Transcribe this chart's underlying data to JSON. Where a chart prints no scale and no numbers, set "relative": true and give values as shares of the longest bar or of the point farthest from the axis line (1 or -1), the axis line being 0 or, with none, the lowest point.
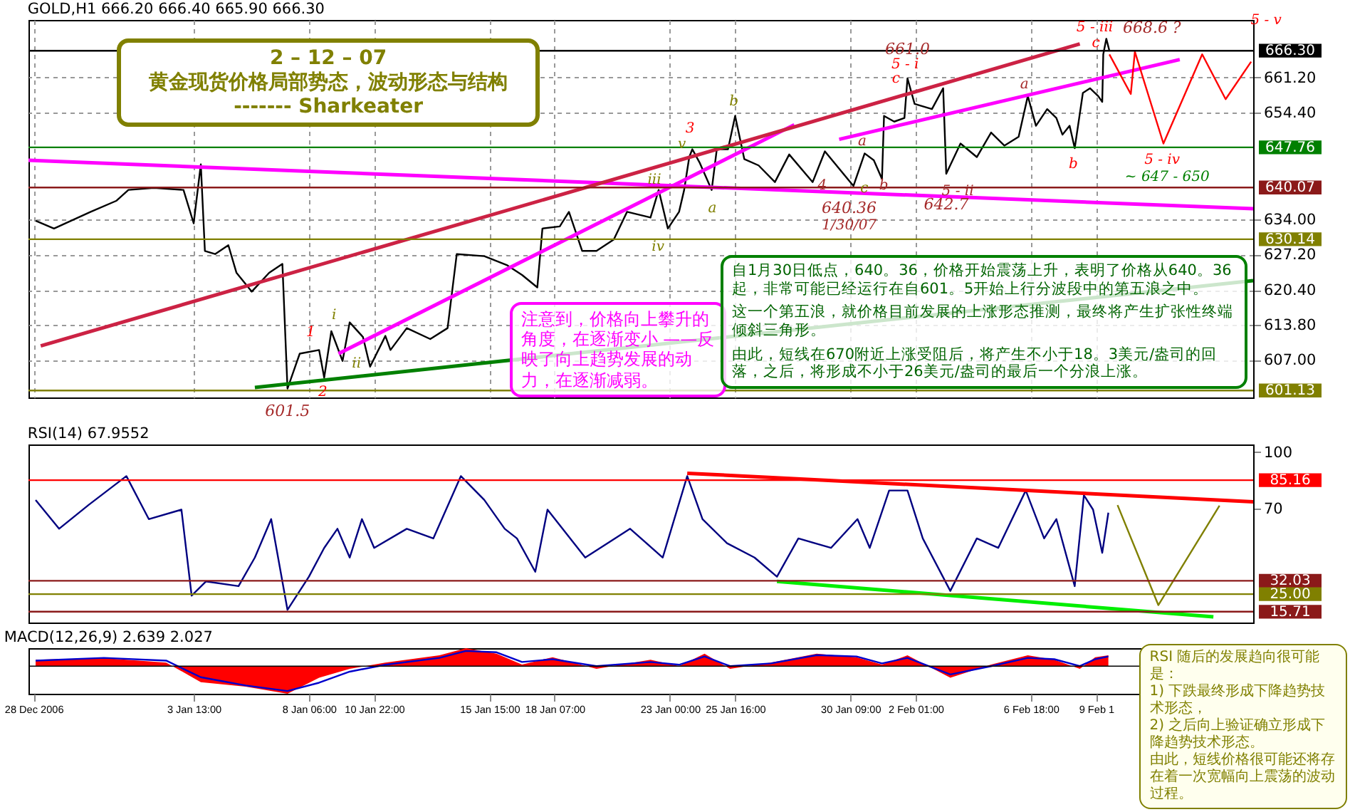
{
  "chart_data": [
    {
      "type": "line",
      "title": "GOLD,H1  666.20 666.40 665.90 666.30",
      "xlim": [
        "2006-12-27T19:00",
        "2007-02-15T20:00"
      ],
      "xticks": [
        {
          "value": "2006-12-28T00:00",
          "label": null
        },
        {
          "value": "2007-01-03T13:00",
          "label": null
        },
        {
          "value": "2007-01-08T06:00",
          "label": null
        },
        {
          "value": "2007-01-10T22:00",
          "label": null
        },
        {
          "value": "2007-01-15T15:00",
          "label": null
        },
        {
          "value": "2007-01-18T07:00",
          "label": null
        },
        {
          "value": "2007-01-23T00:00",
          "label": null
        },
        {
          "value": "2007-01-25T16:00",
          "label": null
        },
        {
          "value": "2007-01-30T09:00",
          "label": null
        },
        {
          "value": "2007-02-02T01:00",
          "label": null
        },
        {
          "value": "2007-02-06T18:00",
          "label": null
        },
        {
          "value": "2007-02-09T10:00",
          "label": null
        }
      ],
      "ylim": [
        599.8,
        672.2
      ],
      "yticks": [
        {
          "value": 607,
          "label": "607.00"
        },
        {
          "value": 613.8,
          "label": "613.80"
        },
        {
          "value": 620.4,
          "label": "620.40"
        },
        {
          "value": 627.2,
          "label": "627.20"
        },
        {
          "value": 634,
          "label": "634.00"
        },
        {
          "value": 654.4,
          "label": "654.40"
        },
        {
          "value": 661.2,
          "label": "661.20"
        }
      ],
      "tick_labels": "y",
      "grid": true,
      "series": [
        {
          "color": "#000000",
          "x": [
            "2006-12-28T02:00",
            "2006-12-28T20:00",
            "2006-12-30T08:00",
            "2006-12-31T09:00",
            "2006-12-31T21:00",
            "2007-01-01T22:00",
            "2007-01-03T03:00",
            "2007-01-03T13:00",
            "2007-01-03T20:00",
            "2007-01-04T00:00",
            "2007-01-04T10:00",
            "2007-01-04T23:00",
            "2007-01-05T07:00",
            "2007-01-05T22:00",
            "2007-01-06T15:00",
            "2007-01-07T04:00",
            "2007-01-07T09:00",
            "2007-01-07T21:00",
            "2007-01-08T16:00",
            "2007-01-08T21:00",
            "2007-01-09T04:00",
            "2007-01-09T15:00",
            "2007-01-09T22:00",
            "2007-01-10T11:00",
            "2007-01-10T18:00",
            "2007-01-11T09:00",
            "2007-01-11T14:00",
            "2007-01-12T06:00",
            "2007-01-13T05:00",
            "2007-01-13T22:00",
            "2007-01-14T07:00",
            "2007-01-15T10:00",
            "2007-01-16T08:00",
            "2007-01-16T23:00",
            "2007-01-17T14:00",
            "2007-01-17T19:00",
            "2007-01-18T12:00",
            "2007-01-18T21:00",
            "2007-01-19T10:00",
            "2007-01-20T00:00",
            "2007-01-20T17:00",
            "2007-01-21T06:00",
            "2007-01-22T05:00",
            "2007-01-22T13:00",
            "2007-01-22T22:00",
            "2007-01-23T09:00",
            "2007-01-23T14:00",
            "2007-01-23T19:00",
            "2007-01-23T22:00",
            "2007-01-24T05:00",
            "2007-01-24T17:00",
            "2007-01-24T22:00",
            "2007-01-25T09:00",
            "2007-01-25T16:00",
            "2007-01-26T01:00",
            "2007-01-26T15:00",
            "2007-01-27T07:00",
            "2007-01-27T21:00",
            "2007-01-28T20:00",
            "2007-01-29T08:00",
            "2007-01-30T12:00",
            "2007-01-30T23:00",
            "2007-01-31T08:00",
            "2007-01-31T16:00",
            "2007-01-31T18:00",
            "2007-02-01T04:00",
            "2007-02-01T14:00",
            "2007-02-01T17:00",
            "2007-02-02T00:00",
            "2007-02-02T17:00",
            "2007-02-03T04:00",
            "2007-02-03T07:00",
            "2007-02-03T21:00",
            "2007-02-04T13:00",
            "2007-02-05T03:00",
            "2007-02-05T16:00",
            "2007-02-06T06:00",
            "2007-02-06T15:00",
            "2007-02-06T23:00",
            "2007-02-07T10:00",
            "2007-02-07T19:00",
            "2007-02-08T01:00",
            "2007-02-08T08:00",
            "2007-02-08T13:00",
            "2007-02-08T21:00",
            "2007-02-09T04:00",
            "2007-02-09T12:00",
            "2007-02-09T16:00",
            "2007-02-09T17:00",
            "2007-02-09T20:00",
            "2007-02-09T23:00"
          ],
          "values": [
            633.7,
            632.2,
            635.4,
            637.5,
            639.6,
            640.0,
            639.6,
            633.2,
            644.5,
            627.9,
            627.3,
            629.0,
            623.7,
            620.1,
            623.7,
            625.4,
            601.5,
            608.2,
            608.9,
            603.6,
            612.5,
            606.8,
            614.2,
            611.4,
            605.7,
            611.6,
            608.9,
            613.1,
            611.0,
            613.1,
            627.3,
            626.9,
            625.2,
            623.3,
            620.9,
            632.2,
            632.6,
            635.4,
            627.9,
            627.9,
            630.1,
            635.4,
            634.3,
            639.6,
            632.2,
            635.4,
            639.6,
            645.9,
            647.4,
            644.9,
            639.6,
            647.4,
            647.4,
            653.8,
            645.5,
            644.3,
            641.1,
            646.4,
            641.1,
            647.0,
            640.36,
            646.6,
            645.3,
            641.7,
            653.8,
            652.7,
            653.4,
            661.0,
            656.1,
            655.1,
            659.1,
            642.7,
            648.5,
            645.9,
            650.6,
            648.1,
            649.8,
            657.6,
            651.9,
            655.1,
            653.4,
            650.2,
            651.9,
            647.6,
            658.2,
            659.1,
            657.6,
            656.5,
            665.6,
            668.6,
            666.3
          ]
        },
        {
          "color": "#ff00ff",
          "x": [
            "2007-01-09T11:00",
            "2007-01-28T02:00"
          ],
          "values": [
            608.2,
            652.1
          ]
        },
        {
          "color": "#ff00ff",
          "x": [
            "2007-01-29T22:00",
            "2007-02-12T20:00"
          ],
          "values": [
            649.3,
            664.6
          ]
        },
        {
          "color": "#ff00ff",
          "x": [
            "2006-12-27T19:00",
            "2007-02-15T20:00"
          ],
          "values": [
            645.3,
            636.0
          ]
        },
        {
          "color": "#008000",
          "x": [
            "2007-01-06T01:00",
            "2007-02-15T20:00"
          ],
          "values": [
            601.7,
            622.2
          ]
        },
        {
          "color": "#cc2244",
          "x": [
            "2006-12-28T07:00",
            "2007-02-08T18:00"
          ],
          "values": [
            609.7,
            667.6
          ]
        },
        {
          "color": "#ff0000",
          "x": [
            "2007-02-09T23:00",
            "2007-02-10T20:00",
            "2007-02-11T00:00",
            "2007-02-12T04:00",
            "2007-02-13T18:00",
            "2007-02-14T17:00",
            "2007-02-15T18:00"
          ],
          "values": [
            665.6,
            658.0,
            666.1,
            648.5,
            665.6,
            657.0,
            664.2
          ]
        }
      ],
      "ref_lines": [
        {
          "axis": "y",
          "value": 666.3,
          "label": "666.30",
          "color": "#000000"
        },
        {
          "axis": "y",
          "value": 647.76,
          "label": "647.76",
          "color": "#008000"
        },
        {
          "axis": "y",
          "value": 640.07,
          "label": "640.07",
          "color": "#8b1a1a"
        },
        {
          "axis": "y",
          "value": 630.14,
          "label": "630.14",
          "color": "#808000"
        },
        {
          "axis": "y",
          "value": 601.13,
          "label": "601.13",
          "color": "#808000"
        }
      ],
      "annotations": [
        "2 – 12 – 07",
        "黄金现货价格局部势态，波动形态与结构",
        "-------      Sharkeater",
        "注意到，价格向上攀升的角度，在逐渐变小 ——反映了向上趋势发展的动力，在逐渐减弱。",
        "自1月30日低点，640。36，价格开始震荡上升，表明了价格从640。36起，非常可能已经运行在自601。5开始上行分波段中的第五浪之中。",
        "这一个第五浪，就价格目前发展的上涨形态推测，最终将产生扩张性终端倾斜三角形。",
        "由此，短线在670附近上涨受阻后，将产生不小于18。3美元/盎司的回落，之后，将形成不小于26美元/盎司的最后一个分浪上涨。",
        "1",
        "2",
        "3",
        "i",
        "ii",
        "iii",
        "iv",
        "v",
        "a",
        "b",
        "a",
        "4",
        "c",
        "1/30/07",
        "b",
        "5 - i",
        "c",
        "5 - ii",
        "a",
        "b",
        "c",
        "5 - iii",
        "5 - iv",
        "~ 647 - 650",
        "5 - v",
        {
          "text": "640.36",
          "x": "2007-01-30T12:00",
          "y": 640.36
        },
        {
          "text": "642.7",
          "x": "2007-02-03T07:00",
          "y": 642.7
        },
        {
          "text": "661.0",
          "x": "2007-02-01T17:00",
          "y": 661.0
        },
        {
          "text": "668.6 ?",
          "x": "2007-02-09T20:00",
          "y": 668.6
        },
        {
          "text": "601.5",
          "x": "2007-01-07T09:00",
          "y": 601.5
        }
      ]
    },
    {
      "type": "line",
      "title": "RSI(14) 67.9552",
      "xlim": [
        "2006-12-27T19:00",
        "2007-02-15T20:00"
      ],
      "ylim": [
        10,
        104
      ],
      "yticks": [
        70,
        100
      ],
      "tick_labels": "y",
      "series": [
        {
          "color": "#000080",
          "x": [
            "2006-12-28T02:00",
            "2006-12-29T01:00",
            "2006-12-30T06:00",
            "2006-12-31T19:00",
            "2007-01-01T17:00",
            "2007-01-03T01:00",
            "2007-01-03T11:00",
            "2007-01-04T01:00",
            "2007-01-05T09:00",
            "2007-01-06T01:00",
            "2007-01-06T17:00",
            "2007-01-07T09:00",
            "2007-01-08T06:00",
            "2007-01-08T21:00",
            "2007-01-09T10:00",
            "2007-01-09T22:00",
            "2007-01-10T10:00",
            "2007-01-10T22:00",
            "2007-01-12T06:00",
            "2007-01-13T08:00",
            "2007-01-14T11:00",
            "2007-01-15T10:00",
            "2007-01-16T06:00",
            "2007-01-16T18:00",
            "2007-01-17T12:00",
            "2007-01-18T00:00",
            "2007-01-19T13:00",
            "2007-01-21T09:00",
            "2007-01-22T17:00",
            "2007-01-23T17:00",
            "2007-01-24T08:00",
            "2007-01-25T08:00",
            "2007-01-26T11:00",
            "2007-01-27T09:00",
            "2007-01-28T06:00",
            "2007-01-29T14:00",
            "2007-01-30T16:00",
            "2007-01-31T04:00",
            "2007-01-31T23:00",
            "2007-02-01T17:00",
            "2007-02-02T08:00",
            "2007-02-03T11:00",
            "2007-02-04T13:00",
            "2007-02-05T10:00",
            "2007-02-06T13:00",
            "2007-02-07T07:00",
            "2007-02-07T19:00",
            "2007-02-08T13:00",
            "2007-02-08T22:00",
            "2007-02-09T07:00",
            "2007-02-09T16:00",
            "2007-02-09T22:00"
          ],
          "values": [
            74.7,
            59.5,
            72.1,
            87.3,
            64.6,
            69.6,
            24.2,
            31.7,
            29.2,
            44.3,
            64.6,
            16.7,
            34.2,
            49.4,
            59.5,
            44.3,
            64.6,
            49.4,
            59.5,
            54.4,
            87.3,
            74.7,
            59.5,
            54.4,
            36.8,
            69.6,
            44.3,
            59.5,
            44.3,
            87.3,
            64.6,
            51.9,
            44.3,
            34.2,
            54.4,
            49.4,
            64.6,
            49.4,
            79.7,
            79.7,
            54.4,
            26.7,
            54.4,
            49.4,
            79.7,
            54.4,
            64.6,
            29.2,
            77.2,
            69.6,
            46.8,
            68.0
          ]
        },
        {
          "color": "#ff0000",
          "x": [
            "2007-01-23T17:00",
            "2007-02-15T20:00"
          ],
          "values": [
            88.8,
            73.7
          ]
        },
        {
          "color": "#00ee00",
          "x": [
            "2007-01-27T09:00",
            "2007-02-14T05:00"
          ],
          "values": [
            31.7,
            13.0
          ]
        },
        {
          "color": "#808000",
          "x": [
            "2007-02-10T07:00",
            "2007-02-11T23:00",
            "2007-02-14T11:00"
          ],
          "values": [
            72.0,
            19.2,
            71.7
          ]
        }
      ],
      "ref_lines": [
        {
          "axis": "y",
          "value": 85.16,
          "label": "85.16",
          "color": "#ff0000"
        },
        {
          "axis": "y",
          "value": 32.03,
          "label": "32.03",
          "color": "#8b1a1a"
        },
        {
          "axis": "y",
          "value": 25.0,
          "label": "25.00",
          "color": "#808000"
        },
        {
          "axis": "y",
          "value": 15.71,
          "label": "15.71",
          "color": "#8b1a1a"
        }
      ],
      "annotations": [
        "RSI  随后的发展趋向很可能是：",
        "1) 下跌最终形成下降趋势技术形态，",
        "2) 之后向上验证确立形成下降趋势技术形态。",
        "由此，短线价格很可能还将存在着一次宽幅向上震荡的波动过程。"
      ]
    },
    {
      "type": "area",
      "title": "MACD(12,26,9) 2.639 2.027",
      "relative": true,
      "xlim": [
        "2006-12-27T19:00",
        "2007-02-15T20:00"
      ],
      "xticks": [
        {
          "value": "2006-12-28T00:00",
          "label": "28 Dec 2006"
        },
        {
          "value": "2007-01-03T13:00",
          "label": "3 Jan 13:00"
        },
        {
          "value": "2007-01-08T06:00",
          "label": "8 Jan 06:00"
        },
        {
          "value": "2007-01-10T22:00",
          "label": "10 Jan 22:00"
        },
        {
          "value": "2007-01-15T15:00",
          "label": "15 Jan 15:00"
        },
        {
          "value": "2007-01-18T07:00",
          "label": "18 Jan 07:00"
        },
        {
          "value": "2007-01-23T00:00",
          "label": "23 Jan 00:00"
        },
        {
          "value": "2007-01-25T16:00",
          "label": "25 Jan 16:00"
        },
        {
          "value": "2007-01-30T09:00",
          "label": "30 Jan 09:00"
        },
        {
          "value": "2007-02-02T01:00",
          "label": "2 Feb 01:00"
        },
        {
          "value": "2007-02-06T18:00",
          "label": "6 Feb 18:00"
        },
        {
          "value": "2007-02-09T10:00",
          "label": "9 Feb 1"
        }
      ],
      "tick_labels": "x",
      "x": [
        "2006-12-28T02:00",
        "2006-12-30T21:00",
        "2007-01-02T10:00",
        "2007-01-03T20:00",
        "2007-01-05T16:00",
        "2007-01-07T09:00",
        "2007-01-08T16:00",
        "2007-01-09T22:00",
        "2007-01-11T09:00",
        "2007-01-13T14:00",
        "2007-01-14T16:00",
        "2007-01-15T22:00",
        "2007-01-16T23:00",
        "2007-01-18T05:00",
        "2007-01-20T00:00",
        "2007-01-22T05:00",
        "2007-01-23T09:00",
        "2007-01-24T10:00",
        "2007-01-25T11:00",
        "2007-01-27T03:00",
        "2007-01-29T00:00",
        "2007-01-30T15:00",
        "2007-01-31T16:00",
        "2007-02-01T17:00",
        "2007-02-03T11:00",
        "2007-02-05T03:00",
        "2007-02-06T15:00",
        "2007-02-07T17:00",
        "2007-02-08T18:00",
        "2007-02-09T09:00",
        "2007-02-09T22:00"
      ],
      "series": [
        {
          "color": "#ff0000",
          "values": [
            0.23,
            0.29,
            0.13,
            -0.58,
            -0.74,
            -1.0,
            -0.42,
            -0.1,
            0.13,
            0.39,
            0.65,
            0.45,
            0.06,
            0.32,
            -0.1,
            0.23,
            0.0,
            0.45,
            -0.1,
            0.13,
            0.45,
            0.32,
            0.06,
            0.39,
            -0.42,
            0.06,
            0.39,
            0.23,
            -0.1,
            0.32,
            0.39
          ]
        },
        {
          "type": "line",
          "color": "#0000cc",
          "values": [
            0.2,
            0.3,
            0.2,
            -0.4,
            -0.7,
            -0.9,
            -0.6,
            -0.2,
            0.05,
            0.3,
            0.55,
            0.5,
            0.15,
            0.25,
            0.0,
            0.15,
            0.05,
            0.35,
            0.0,
            0.1,
            0.4,
            0.35,
            0.1,
            0.3,
            -0.3,
            0.0,
            0.3,
            0.25,
            0.0,
            0.25,
            0.35
          ]
        }
      ]
    }
  ]
}
